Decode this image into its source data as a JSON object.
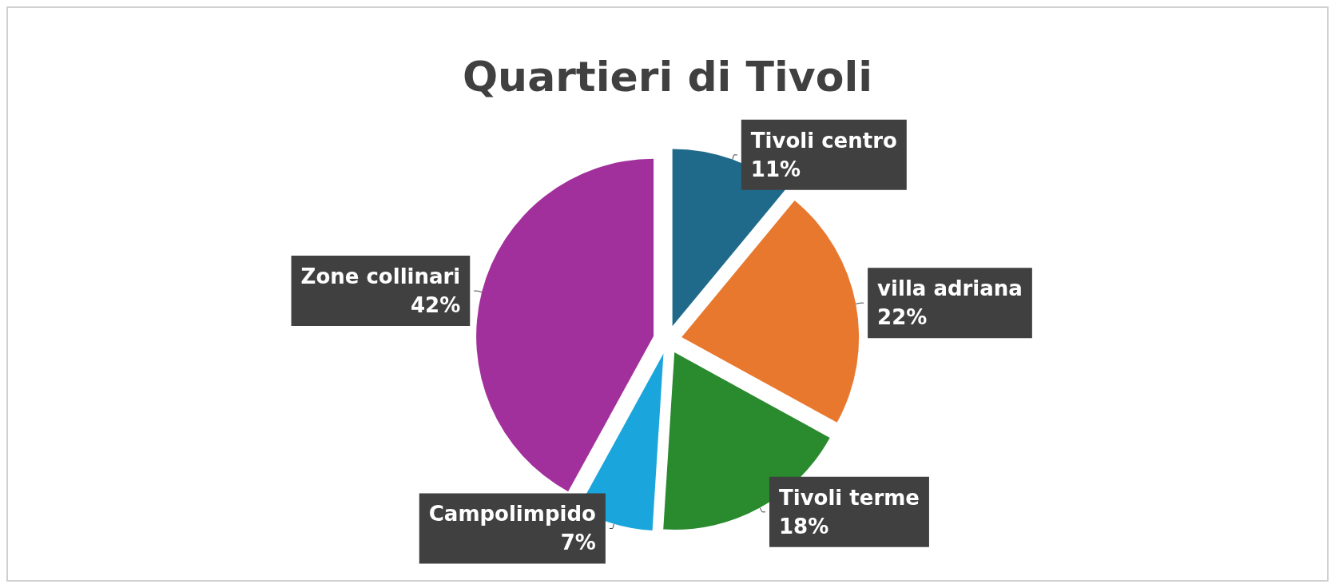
{
  "chart_data": {
    "type": "pie",
    "title": "Quartieri di Tivoli",
    "categories": [
      "Tivoli centro",
      "villa adriana",
      "Tivoli terme",
      "Campolimpido",
      "Zone collinari"
    ],
    "values": [
      11,
      22,
      18,
      7,
      42
    ],
    "value_labels": [
      "11%",
      "22%",
      "18%",
      "7%",
      "42%"
    ],
    "colors": [
      "#1f6a8a",
      "#e8782e",
      "#2a8a2e",
      "#1aa6dc",
      "#a2309c"
    ],
    "legend": false
  }
}
